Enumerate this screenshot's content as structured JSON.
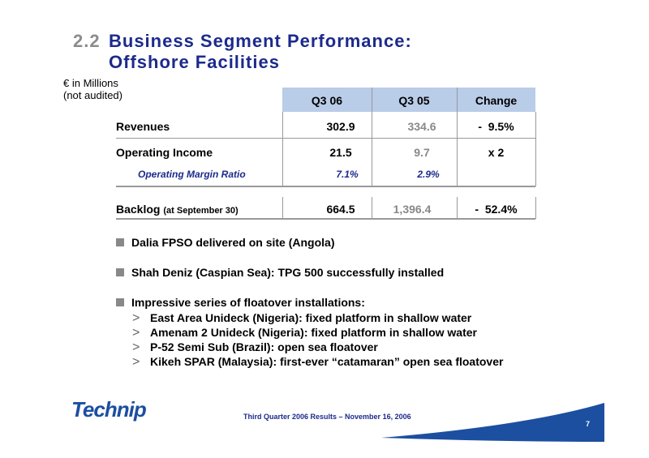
{
  "header": {
    "number": "2.2",
    "title_line1": "Business Segment Performance:",
    "title_line2": "Offshore Facilities"
  },
  "units": [
    "€ in Millions",
    "(not audited)"
  ],
  "table": {
    "columns": [
      "Q3 06",
      "Q3 05",
      "Change"
    ],
    "rows": [
      [
        "Revenues",
        "302.9",
        "334.6",
        "-  9.5%"
      ],
      [
        "Operating Income",
        "21.5",
        "9.7",
        "x 2"
      ],
      [
        "Operating Margin Ratio",
        "7.1%",
        "2.9%"
      ]
    ],
    "backlog": {
      "label": "Backlog",
      "note": "(at September 30)",
      "values": [
        "664.5",
        "1,396.4",
        "-  52.4%"
      ]
    }
  },
  "bullets": [
    "Dalia FPSO delivered on site (Angola)",
    "Shah Deniz (Caspian Sea): TPG 500 successfully installed",
    "Impressive series of floatover installations:"
  ],
  "sub_bullets": [
    "East Area Unideck (Nigeria): fixed platform in shallow water",
    "Amenam 2 Unideck (Nigeria): fixed platform in shallow water",
    "P-52 Semi Sub (Brazil): open sea floatover",
    "Kikeh SPAR (Malaysia): first-ever “catamaran” open sea floatover"
  ],
  "footer": {
    "logo": "Technip",
    "text": "Third Quarter 2006 Results – November 16, 2006",
    "page": "7"
  }
}
